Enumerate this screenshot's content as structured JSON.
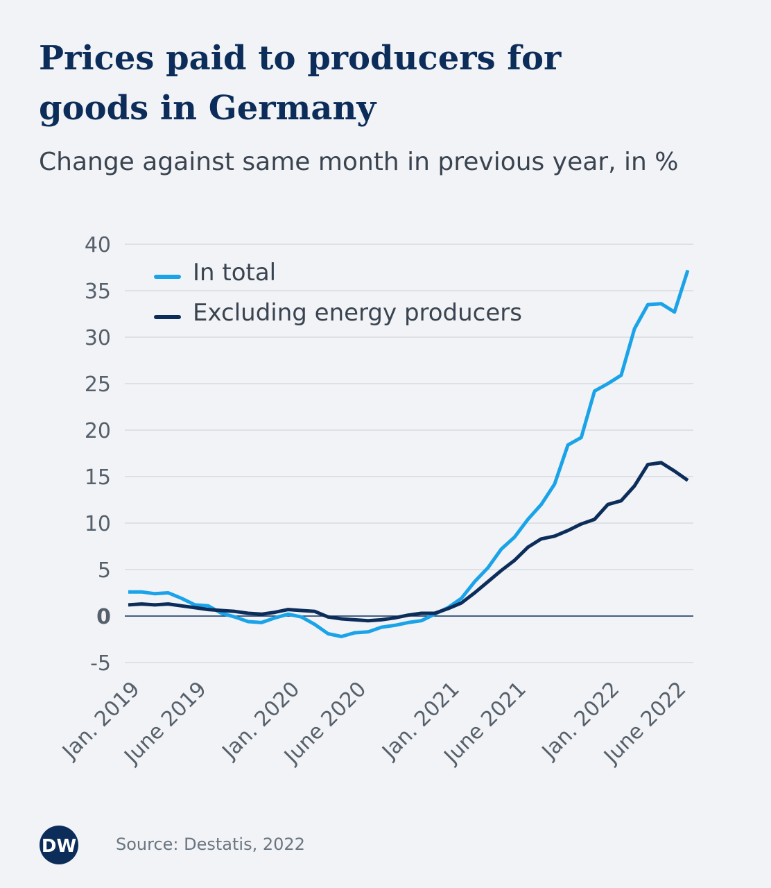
{
  "chart_data": {
    "type": "line",
    "title": [
      "Prices paid to producers for",
      "goods in Germany"
    ],
    "subtitle": "Change against same month in previous year, in %",
    "source": "Source: Destatis, 2022",
    "logo": "DW",
    "categories": [
      "Jan. 2019",
      null,
      null,
      null,
      null,
      "June 2019",
      null,
      null,
      null,
      null,
      null,
      null,
      "Jan. 2020",
      null,
      null,
      null,
      null,
      "June 2020",
      null,
      null,
      null,
      null,
      null,
      null,
      "Jan. 2021",
      null,
      null,
      null,
      null,
      "June 2021",
      null,
      null,
      null,
      null,
      null,
      null,
      "Jan. 2022",
      null,
      null,
      null,
      null,
      "June 2022",
      null
    ],
    "series": [
      {
        "name": "In total",
        "color": "#1aa3e8",
        "values": [
          2.6,
          2.6,
          2.4,
          2.5,
          1.9,
          1.2,
          1.1,
          0.3,
          -0.1,
          -0.6,
          -0.7,
          -0.2,
          0.2,
          -0.1,
          -0.9,
          -1.9,
          -2.2,
          -1.8,
          -1.7,
          -1.2,
          -1.0,
          -0.7,
          -0.5,
          0.2,
          0.9,
          1.9,
          3.7,
          5.2,
          7.2,
          8.5,
          10.4,
          12.0,
          14.2,
          18.4,
          19.2,
          24.2,
          25.0,
          25.9,
          30.9,
          33.5,
          33.6,
          32.7,
          37.2
        ]
      },
      {
        "name": "Excluding energy producers",
        "color": "#0c2d5a",
        "values": [
          1.2,
          1.3,
          1.2,
          1.3,
          1.1,
          0.9,
          0.7,
          0.6,
          0.5,
          0.3,
          0.2,
          0.4,
          0.7,
          0.6,
          0.5,
          -0.1,
          -0.3,
          -0.4,
          -0.5,
          -0.4,
          -0.2,
          0.1,
          0.3,
          0.3,
          0.8,
          1.4,
          2.5,
          3.7,
          4.9,
          6.0,
          7.4,
          8.3,
          8.6,
          9.2,
          9.9,
          10.4,
          12.0,
          12.4,
          14.0,
          16.3,
          16.5,
          15.6,
          14.6
        ]
      }
    ],
    "ylim": [
      -5,
      40
    ],
    "yticks": [
      -5,
      0,
      5,
      10,
      15,
      20,
      25,
      30,
      35,
      40
    ],
    "grid": true,
    "legend": "top-left"
  }
}
